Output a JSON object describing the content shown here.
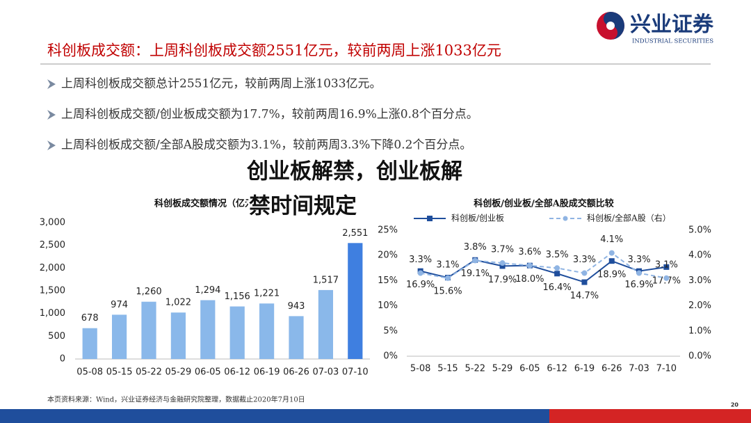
{
  "header": {
    "title": "科创板成交额：上周科创板成交额2551亿元，较前两周上涨1033亿元",
    "logo": "兴业证券",
    "logo_en": "INDUSTRIAL SECURITIES"
  },
  "bullets": [
    "上周科创板成交额总计2551亿元，较前两周上涨1033亿元。",
    "上周科创板成交额/创业板成交额为17.7%，较前两周16.9%上涨0.8个百分点。",
    "上周科创板成交额/全部A股成交额为3.1%，较前两周3.3%下降0.2个百分点。"
  ],
  "chart_data": [
    {
      "type": "bar",
      "title": "科创板成交额情况（亿元）",
      "categories": [
        "05-08",
        "05-15",
        "05-22",
        "05-29",
        "06-05",
        "06-12",
        "06-19",
        "06-26",
        "07-03",
        "07-10"
      ],
      "values": [
        678,
        974,
        1260,
        1022,
        1294,
        1156,
        1221,
        943,
        1517,
        2551
      ],
      "value_labels": [
        "678",
        "974",
        "1,260",
        "1,022",
        "1,294",
        "1,156",
        "1,221",
        "943",
        "1,517",
        "2,551"
      ],
      "colors": [
        "#8ab8ea",
        "#8ab8ea",
        "#8ab8ea",
        "#8ab8ea",
        "#8ab8ea",
        "#8ab8ea",
        "#8ab8ea",
        "#8ab8ea",
        "#8ab8ea",
        "#3f7fe0"
      ],
      "ylim": [
        0,
        3000
      ],
      "yticks": [
        0,
        500,
        {
          "value": 1000,
          "label": "1,000"
        },
        {
          "value": 1500,
          "label": "1,500"
        },
        {
          "value": 2000,
          "label": "2,000"
        },
        {
          "value": 2500,
          "label": "2,500"
        },
        {
          "value": 3000,
          "label": "3,000"
        }
      ]
    },
    {
      "type": "line",
      "title": "科创板/创业板/全部A股成交额比较",
      "categories": [
        "5-08",
        "5-15",
        "5-22",
        "5-29",
        "6-05",
        "6-12",
        "6-19",
        "6-26",
        "7-03",
        "7-10"
      ],
      "series": [
        {
          "name": "科创板/创业板",
          "color": "#1f4e9c",
          "dashed": false,
          "values": [
            16.9,
            15.6,
            19.1,
            17.9,
            18.0,
            16.4,
            14.7,
            18.9,
            16.9,
            17.7
          ],
          "value_labels": [
            "16.9%",
            "15.6%",
            "19.1%",
            "17.9%",
            "18.0%",
            "16.4%",
            "14.7%",
            "18.9%",
            "16.9%",
            "17.7%"
          ]
        },
        {
          "name": "科创板/全部A股（右）",
          "color": "#8fb4e3",
          "dashed": true,
          "axis": "y2",
          "values": [
            3.3,
            3.1,
            3.8,
            3.7,
            3.6,
            3.5,
            3.3,
            4.1,
            3.3,
            3.1
          ],
          "value_labels": [
            "3.3%",
            "3.1%",
            "3.8%",
            "3.7%",
            "3.6%",
            "3.5%",
            "3.3%",
            "4.1%",
            "3.3%",
            "3.1%"
          ]
        }
      ],
      "ylim": [
        0,
        25
      ],
      "yticks": [
        {
          "value": 0,
          "label": "0%"
        },
        {
          "value": 5,
          "label": "5%"
        },
        {
          "value": 10,
          "label": "10%"
        },
        {
          "value": 15,
          "label": "15%"
        },
        {
          "value": 20,
          "label": "20%"
        },
        {
          "value": 25,
          "label": "25%"
        }
      ],
      "y2lim": [
        0,
        5
      ],
      "y2ticks": [
        {
          "value": 0,
          "label": "0.0%"
        },
        {
          "value": 1,
          "label": "1.0%"
        },
        {
          "value": 2,
          "label": "2.0%"
        },
        {
          "value": 3,
          "label": "3.0%"
        },
        {
          "value": 4,
          "label": "4.0%"
        },
        {
          "value": 5,
          "label": "5.0%"
        }
      ]
    }
  ],
  "source": "本页资料来源：Wind，兴业证券经济与金融研究院整理，数据截止2020年7月10日",
  "page_number": "20",
  "overlay": [
    "创业板解禁，创业板解",
    "禁时间规定"
  ]
}
